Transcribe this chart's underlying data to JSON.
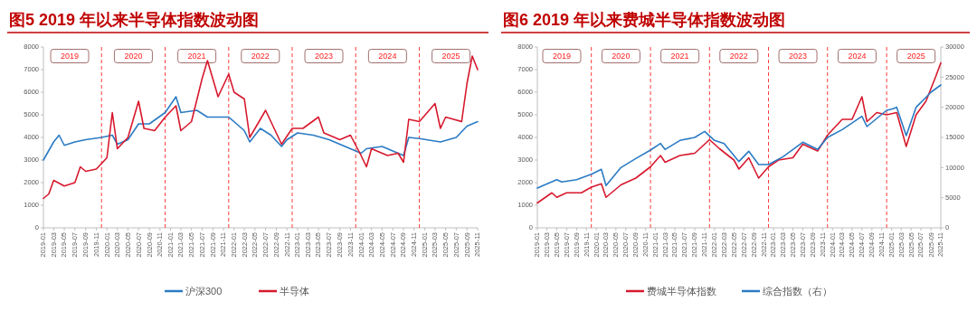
{
  "chart_data": [
    {
      "type": "line",
      "title": "图5  2019 年以来半导体指数波动图",
      "xlim": [
        "2019-01",
        "2025-11"
      ],
      "ylim": [
        0,
        8000
      ],
      "yticks": [
        0,
        1000,
        2000,
        3000,
        4000,
        5000,
        6000,
        7000,
        8000
      ],
      "xticks": [
        "2019-01",
        "2019-03",
        "2019-05",
        "2019-07",
        "2019-09",
        "2019-11",
        "2020-01",
        "2020-03",
        "2020-05",
        "2020-07",
        "2020-09",
        "2020-11",
        "2021-01",
        "2021-03",
        "2021-05",
        "2021-07",
        "2021-09",
        "2021-11",
        "2022-01",
        "2022-03",
        "2022-05",
        "2022-07",
        "2022-09",
        "2022-11",
        "2023-01",
        "2023-03",
        "2023-05",
        "2023-07",
        "2023-09",
        "2023-11",
        "2024-01",
        "2024-03",
        "2024-05",
        "2024-07",
        "2024-09",
        "2024-11",
        "2025-01",
        "2025-03",
        "2025-05",
        "2025-07",
        "2025-09",
        "2025-11"
      ],
      "grid": false,
      "legend": "bottom",
      "line_style": "solid",
      "series": [
        {
          "name": "沪深300",
          "color": "#2a7bc4",
          "x": [
            "2019-01",
            "2019-03",
            "2019-04",
            "2019-05",
            "2019-07",
            "2019-09",
            "2019-12",
            "2020-02",
            "2020-03",
            "2020-05",
            "2020-07",
            "2020-09",
            "2020-12",
            "2021-02",
            "2021-03",
            "2021-06",
            "2021-08",
            "2021-12",
            "2022-03",
            "2022-04",
            "2022-06",
            "2022-08",
            "2022-10",
            "2022-11",
            "2023-01",
            "2023-04",
            "2023-07",
            "2023-10",
            "2024-01",
            "2024-02",
            "2024-05",
            "2024-08",
            "2024-09",
            "2024-10",
            "2024-12",
            "2025-04",
            "2025-07",
            "2025-09",
            "2025-11"
          ],
          "values": [
            3000,
            3800,
            4100,
            3650,
            3800,
            3900,
            4000,
            4100,
            3700,
            3900,
            4600,
            4600,
            5100,
            5800,
            5100,
            5200,
            4900,
            4900,
            4300,
            3800,
            4400,
            4100,
            3600,
            3900,
            4200,
            4100,
            3900,
            3600,
            3300,
            3500,
            3600,
            3300,
            3200,
            4000,
            3950,
            3800,
            4000,
            4500,
            4700
          ]
        },
        {
          "name": "半导体",
          "color": "#d7192e",
          "x": [
            "2019-01",
            "2019-02",
            "2019-03",
            "2019-05",
            "2019-07",
            "2019-08",
            "2019-09",
            "2019-11",
            "2020-01",
            "2020-02",
            "2020-03",
            "2020-05",
            "2020-07",
            "2020-08",
            "2020-10",
            "2020-12",
            "2021-02",
            "2021-03",
            "2021-05",
            "2021-07",
            "2021-08",
            "2021-10",
            "2021-12",
            "2022-01",
            "2022-03",
            "2022-04",
            "2022-06",
            "2022-07",
            "2022-10",
            "2022-12",
            "2023-02",
            "2023-05",
            "2023-06",
            "2023-09",
            "2023-11",
            "2024-01",
            "2024-02",
            "2024-03",
            "2024-06",
            "2024-08",
            "2024-09",
            "2024-10",
            "2024-12",
            "2025-03",
            "2025-04",
            "2025-05",
            "2025-08",
            "2025-09",
            "2025-10",
            "2025-11"
          ],
          "values": [
            1300,
            1500,
            2100,
            1850,
            2000,
            2700,
            2500,
            2600,
            3100,
            5100,
            3500,
            4000,
            5600,
            4400,
            4300,
            4900,
            5400,
            4300,
            4700,
            6600,
            7400,
            5800,
            6800,
            6000,
            5700,
            4000,
            4800,
            5200,
            3700,
            4400,
            4400,
            4900,
            4200,
            3900,
            4100,
            3200,
            2700,
            3500,
            3200,
            3300,
            2900,
            4800,
            4700,
            5500,
            4400,
            4900,
            4700,
            6400,
            7600,
            7000
          ]
        }
      ],
      "ref_lines": [
        {
          "axis": "x",
          "value": "2019-12",
          "color": "#ff3b3b",
          "line_style": "dashed"
        },
        {
          "axis": "x",
          "value": "2020-12",
          "color": "#ff3b3b",
          "line_style": "dashed"
        },
        {
          "axis": "x",
          "value": "2021-12",
          "color": "#ff3b3b",
          "line_style": "dashed"
        },
        {
          "axis": "x",
          "value": "2022-12",
          "color": "#ff3b3b",
          "line_style": "dashed"
        },
        {
          "axis": "x",
          "value": "2023-12",
          "color": "#ff3b3b",
          "line_style": "dashed"
        },
        {
          "axis": "x",
          "value": "2024-12",
          "color": "#ff3b3b",
          "line_style": "dashed"
        }
      ],
      "annotations": [
        {
          "text": "2019",
          "x": "2019-06",
          "y": 7600
        },
        {
          "text": "2020",
          "x": "2020-06",
          "y": 7600
        },
        {
          "text": "2021",
          "x": "2021-06",
          "y": 7600
        },
        {
          "text": "2022",
          "x": "2022-06",
          "y": 7600
        },
        {
          "text": "2023",
          "x": "2023-06",
          "y": 7600
        },
        {
          "text": "2024",
          "x": "2024-06",
          "y": 7600
        },
        {
          "text": "2025",
          "x": "2025-06",
          "y": 7600
        }
      ]
    },
    {
      "type": "line",
      "title": "图6  2019 年以来费城半导体指数波动图",
      "xlim": [
        "2019-01",
        "2025-11"
      ],
      "ylim": [
        0,
        8000
      ],
      "yticks": [
        0,
        1000,
        2000,
        3000,
        4000,
        5000,
        6000,
        7000,
        8000
      ],
      "y2lim": [
        0,
        30000
      ],
      "y2ticks": [
        0,
        5000,
        10000,
        15000,
        20000,
        25000,
        30000
      ],
      "xticks": [
        "2019-01",
        "2019-03",
        "2019-05",
        "2019-07",
        "2019-09",
        "2019-11",
        "2020-01",
        "2020-03",
        "2020-05",
        "2020-07",
        "2020-09",
        "2020-11",
        "2021-01",
        "2021-03",
        "2021-05",
        "2021-07",
        "2021-09",
        "2021-11",
        "2022-01",
        "2022-03",
        "2022-05",
        "2022-07",
        "2022-09",
        "2022-11",
        "2023-01",
        "2023-03",
        "2023-05",
        "2023-07",
        "2023-09",
        "2023-11",
        "2024-01",
        "2024-03",
        "2024-05",
        "2024-07",
        "2024-09",
        "2024-11",
        "2025-01",
        "2025-03",
        "2025-05",
        "2025-07",
        "2025-09",
        "2025-11"
      ],
      "grid": false,
      "legend": "bottom",
      "line_style": "solid",
      "series": [
        {
          "name": "费城半导体指数",
          "color": "#d7192e",
          "x": [
            "2019-01",
            "2019-04",
            "2019-05",
            "2019-07",
            "2019-10",
            "2019-12",
            "2020-02",
            "2020-03",
            "2020-06",
            "2020-09",
            "2020-12",
            "2021-02",
            "2021-03",
            "2021-06",
            "2021-09",
            "2021-12",
            "2022-02",
            "2022-05",
            "2022-06",
            "2022-08",
            "2022-10",
            "2022-12",
            "2023-02",
            "2023-05",
            "2023-07",
            "2023-10",
            "2023-12",
            "2024-03",
            "2024-05",
            "2024-07",
            "2024-08",
            "2024-10",
            "2024-12",
            "2025-02",
            "2025-04",
            "2025-06",
            "2025-08",
            "2025-10",
            "2025-11"
          ],
          "values": [
            1100,
            1550,
            1350,
            1550,
            1550,
            1800,
            1950,
            1350,
            1900,
            2200,
            2700,
            3200,
            2900,
            3200,
            3300,
            3900,
            3500,
            3000,
            2600,
            3100,
            2200,
            2700,
            3000,
            3100,
            3700,
            3400,
            4100,
            4800,
            4800,
            5800,
            4700,
            5100,
            5000,
            5100,
            3600,
            5000,
            5600,
            6700,
            7300
          ]
        },
        {
          "name": "综合指数（右）",
          "color": "#2a7bc4",
          "axis": "y2",
          "x": [
            "2019-01",
            "2019-05",
            "2019-06",
            "2019-09",
            "2019-12",
            "2020-02",
            "2020-03",
            "2020-06",
            "2020-09",
            "2020-12",
            "2021-02",
            "2021-03",
            "2021-06",
            "2021-09",
            "2021-11",
            "2022-01",
            "2022-03",
            "2022-06",
            "2022-08",
            "2022-10",
            "2022-12",
            "2023-03",
            "2023-07",
            "2023-10",
            "2023-12",
            "2024-03",
            "2024-07",
            "2024-08",
            "2024-12",
            "2025-01",
            "2025-02",
            "2025-04",
            "2025-06",
            "2025-09",
            "2025-11"
          ],
          "values": [
            6600,
            8000,
            7600,
            8000,
            8900,
            9700,
            7000,
            10000,
            11500,
            12900,
            14000,
            13000,
            14500,
            15000,
            16000,
            14500,
            14000,
            11000,
            12700,
            10500,
            10500,
            11800,
            14200,
            13000,
            15000,
            16300,
            18500,
            16800,
            19500,
            19700,
            20000,
            15300,
            20000,
            22500,
            23700
          ]
        }
      ],
      "ref_lines": [
        {
          "axis": "x",
          "value": "2019-12",
          "color": "#ff3b3b",
          "line_style": "dashed"
        },
        {
          "axis": "x",
          "value": "2020-12",
          "color": "#ff3b3b",
          "line_style": "dashed"
        },
        {
          "axis": "x",
          "value": "2021-12",
          "color": "#ff3b3b",
          "line_style": "dashed"
        },
        {
          "axis": "x",
          "value": "2022-12",
          "color": "#ff3b3b",
          "line_style": "dashed"
        },
        {
          "axis": "x",
          "value": "2023-12",
          "color": "#ff3b3b",
          "line_style": "dashed"
        },
        {
          "axis": "x",
          "value": "2024-12",
          "color": "#ff3b3b",
          "line_style": "dashed"
        }
      ],
      "annotations": [
        {
          "text": "2019",
          "x": "2019-06",
          "y": 7600
        },
        {
          "text": "2020",
          "x": "2020-06",
          "y": 7600
        },
        {
          "text": "2021",
          "x": "2021-06",
          "y": 7600
        },
        {
          "text": "2022",
          "x": "2022-06",
          "y": 7600
        },
        {
          "text": "2023",
          "x": "2023-06",
          "y": 7600
        },
        {
          "text": "2024",
          "x": "2024-06",
          "y": 7600
        },
        {
          "text": "2025",
          "x": "2025-06",
          "y": 7600
        }
      ]
    }
  ]
}
